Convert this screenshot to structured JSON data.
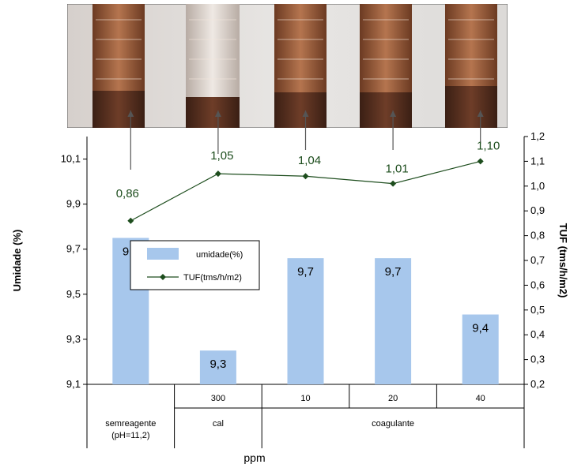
{
  "chart_data": {
    "type": "bar+line",
    "categories": [
      "semreagente (pH=11,2)",
      "300",
      "10",
      "20",
      "40"
    ],
    "group_labels": [
      "semreagente\n(pH=11,2)",
      "cal",
      "coagulante"
    ],
    "xlabel": "ppm",
    "ylabel_left": "Umidade (%)",
    "ylabel_right": "TUF (tms/h/m2)",
    "ylim_left": [
      9.1,
      10.2
    ],
    "yticks_left": [
      "9,1",
      "9,3",
      "9,5",
      "9,7",
      "9,9",
      "10,1"
    ],
    "ylim_right": [
      0.2,
      1.2
    ],
    "yticks_right": [
      "0,2",
      "0,3",
      "0,4",
      "0,5",
      "0,6",
      "0,7",
      "0,8",
      "0,9",
      "1,0",
      "1,1",
      "1,2"
    ],
    "series": [
      {
        "name": "umidade(%)",
        "kind": "bar",
        "axis": "left",
        "values": [
          9.75,
          9.25,
          9.66,
          9.66,
          9.41
        ],
        "labels": [
          "9,8",
          "9,3",
          "9,7",
          "9,7",
          "9,4"
        ],
        "color": "#a7c7ec"
      },
      {
        "name": "TUF(tms/h/m2)",
        "kind": "line",
        "axis": "right",
        "values": [
          0.86,
          1.05,
          1.04,
          1.01,
          1.1
        ],
        "labels": [
          "0,86",
          "1,05",
          "1,04",
          "1,01",
          "1,10"
        ],
        "color": "#1d4d1d"
      }
    ],
    "legend_position": "center-left",
    "grid": false
  }
}
